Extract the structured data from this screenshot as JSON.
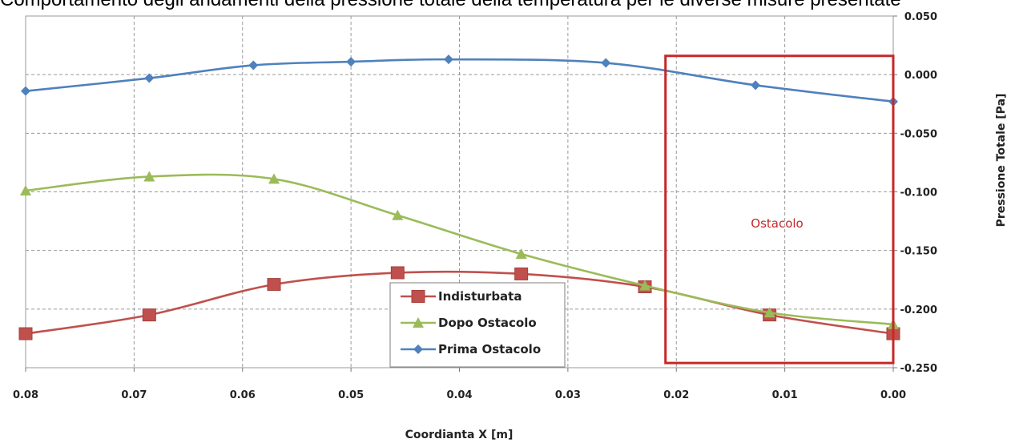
{
  "caption": "Comportamento degli andamenti della pressione totale della temperatura per le diverse misure presentate",
  "chart_data": {
    "type": "line",
    "title": "",
    "xlabel": "Coordianta X [m]",
    "ylabel": "Pressione Totale [Pa]",
    "xlim": [
      0.08,
      0.0
    ],
    "ylim": [
      -0.25,
      0.05
    ],
    "x_ticks": [
      "0.08",
      "0.07",
      "0.06",
      "0.05",
      "0.04",
      "0.03",
      "0.02",
      "0.01",
      "0.00"
    ],
    "y_ticks": [
      "0.050",
      "0.000",
      "-0.050",
      "-0.100",
      "-0.150",
      "-0.200",
      "-0.250"
    ],
    "grid": true,
    "legend_position": "bottom-center",
    "series": [
      {
        "name": "Indisturbata",
        "color": "#c0504d",
        "marker": "square",
        "x": [
          0.08,
          0.0686,
          0.0571,
          0.0457,
          0.0343,
          0.0229,
          0.0114,
          0.0
        ],
        "y": [
          -0.221,
          -0.205,
          -0.179,
          -0.169,
          -0.17,
          -0.181,
          -0.205,
          -0.221
        ]
      },
      {
        "name": "Dopo Ostacolo",
        "color": "#9bbb59",
        "marker": "triangle",
        "x": [
          0.08,
          0.0686,
          0.0571,
          0.0457,
          0.0343,
          0.0229,
          0.0114,
          0.0
        ],
        "y": [
          -0.099,
          -0.087,
          -0.089,
          -0.12,
          -0.153,
          -0.18,
          -0.203,
          -0.213
        ]
      },
      {
        "name": "Prima Ostacolo",
        "color": "#4f81bd",
        "marker": "diamond",
        "x": [
          0.08,
          0.0686,
          0.059,
          0.05,
          0.041,
          0.0265,
          0.0127,
          0.0
        ],
        "y": [
          -0.014,
          -0.003,
          0.008,
          0.011,
          0.013,
          0.01,
          -0.009,
          -0.023
        ]
      }
    ],
    "annotation": {
      "label": "Ostacolo",
      "x_range": [
        0.021,
        0.0
      ],
      "y_range": [
        -0.246,
        0.016
      ],
      "color": "#c62828"
    }
  }
}
